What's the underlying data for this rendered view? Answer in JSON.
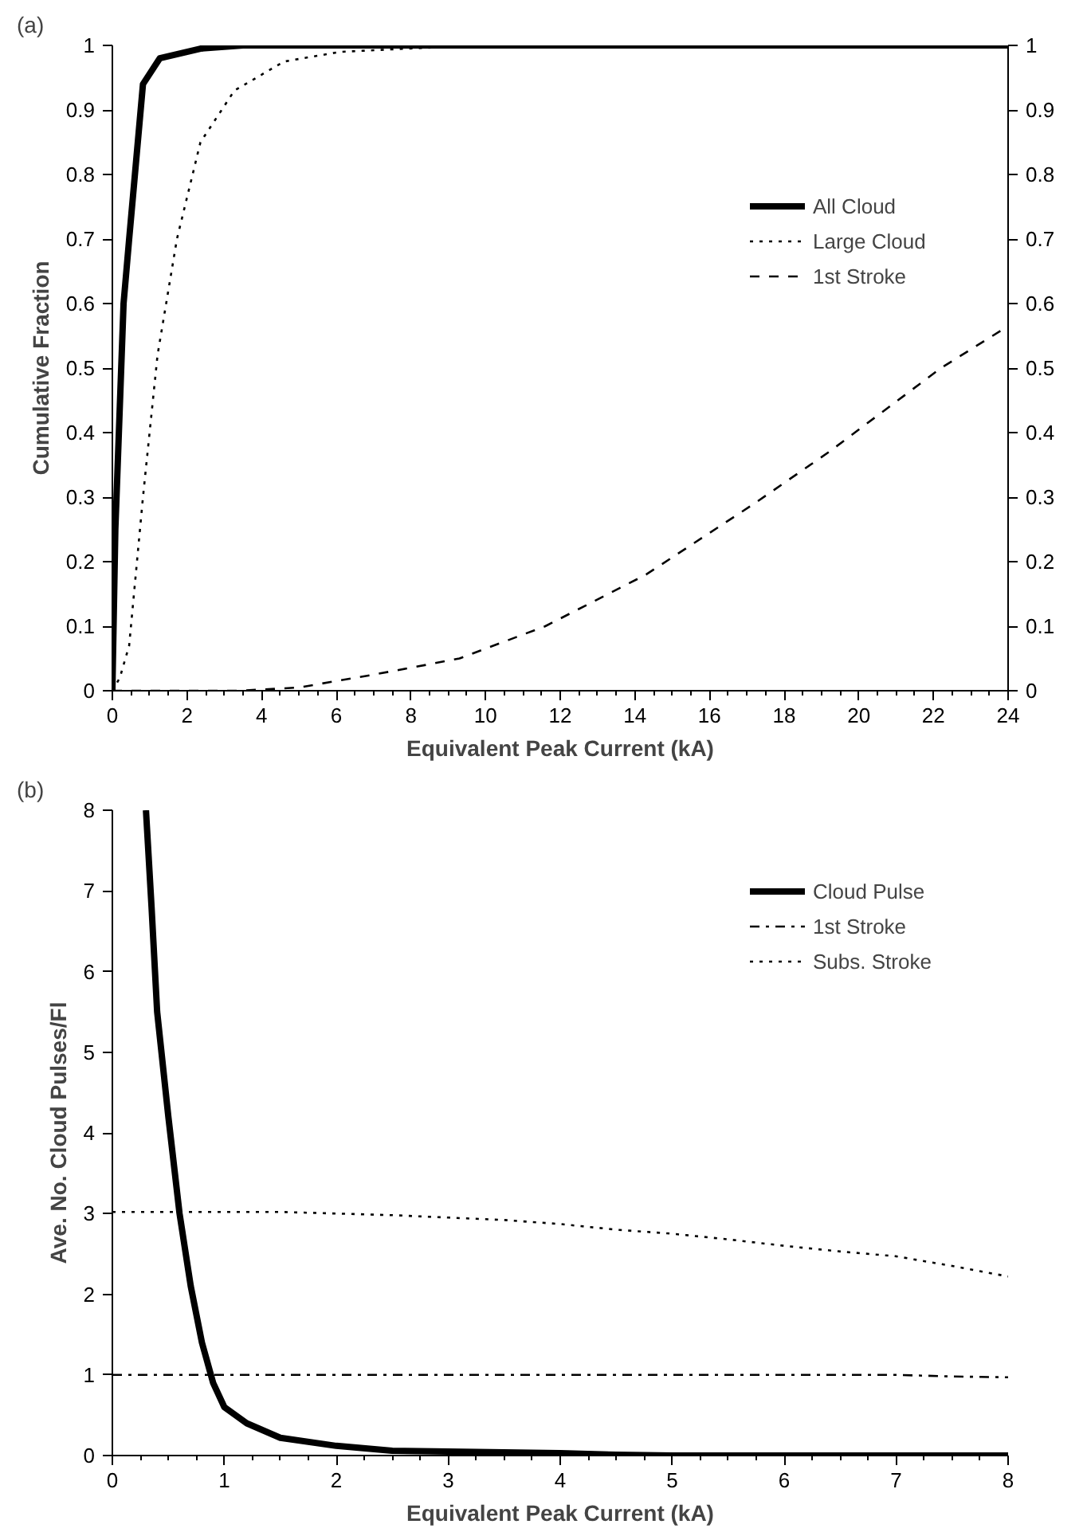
{
  "chart_data": [
    {
      "type": "line",
      "xlabel": "Equivalent Peak Current (kA)",
      "ylabel": "Cumulative Fraction",
      "annotations": [
        "(a)"
      ],
      "xlim": [
        0,
        24
      ],
      "xticks": [
        0,
        2,
        4,
        6,
        8,
        10,
        12,
        14,
        16,
        18,
        20,
        22,
        24
      ],
      "ylim": [
        0,
        1
      ],
      "yticks": [
        0,
        0.1,
        0.2,
        0.3,
        0.4,
        0.5,
        0.6,
        0.7,
        0.8,
        0.9,
        1
      ],
      "y2lim": [
        0,
        1
      ],
      "y2ticks": [
        0,
        0.1,
        0.2,
        0.3,
        0.4,
        0.5,
        0.6,
        0.7,
        0.8,
        0.9,
        1
      ],
      "grid": false,
      "legend": "right",
      "series": [
        {
          "name": "All Cloud",
          "color": "#000000",
          "line_style": "solid",
          "x": [
            0,
            0.08,
            0.3,
            0.45,
            0.82,
            1.27,
            2.36,
            3.5,
            24
          ],
          "values": [
            0,
            0.25,
            0.6,
            0.7,
            0.94,
            0.98,
            0.995,
            1,
            1
          ]
        },
        {
          "name": "Large Cloud",
          "color": "#000000",
          "line_style": "dotted",
          "x": [
            0,
            0.2,
            0.45,
            0.82,
            1.21,
            1.73,
            2.36,
            3.27,
            4.6,
            6.1,
            7.9,
            10,
            24
          ],
          "values": [
            0,
            0.02,
            0.07,
            0.3,
            0.52,
            0.7,
            0.85,
            0.93,
            0.975,
            0.99,
            0.995,
            1,
            1
          ]
        },
        {
          "name": "1st Stroke",
          "color": "#000000",
          "line_style": "dashed",
          "x": [
            0,
            3.4,
            5,
            6,
            7,
            8.4,
            9.3,
            11.6,
            14.3,
            17.2,
            19.2,
            22.2,
            24
          ],
          "values": [
            0,
            0,
            0.005,
            0.015,
            0.025,
            0.04,
            0.05,
            0.1,
            0.18,
            0.29,
            0.37,
            0.5,
            0.565
          ]
        }
      ]
    },
    {
      "type": "line",
      "xlabel": "Equivalent Peak Current (kA)",
      "ylabel": "Ave. No. Cloud Pulses/Fl",
      "annotations": [
        "(b)"
      ],
      "xlim": [
        0,
        8
      ],
      "xticks": [
        0,
        1,
        2,
        3,
        4,
        5,
        6,
        7,
        8
      ],
      "ylim": [
        0,
        8
      ],
      "yticks": [
        0,
        1,
        2,
        3,
        4,
        5,
        6,
        7,
        8
      ],
      "grid": false,
      "legend": "top right",
      "series": [
        {
          "name": "Cloud Pulse",
          "color": "#000000",
          "line_style": "solid",
          "x": [
            0.3,
            0.35,
            0.4,
            0.5,
            0.6,
            0.7,
            0.8,
            0.9,
            1.0,
            1.2,
            1.5,
            2,
            2.5,
            3,
            4,
            4.5,
            5,
            8
          ],
          "values": [
            8,
            6.8,
            5.5,
            4.2,
            3,
            2.1,
            1.4,
            0.9,
            0.6,
            0.4,
            0.22,
            0.12,
            0.06,
            0.05,
            0.03,
            0.01,
            0,
            0
          ]
        },
        {
          "name": "1st Stroke",
          "color": "#000000",
          "line_style": "dashdot",
          "x": [
            0,
            7,
            7.5,
            8
          ],
          "values": [
            1,
            1,
            0.98,
            0.97
          ]
        },
        {
          "name": "Subs. Stroke",
          "color": "#000000",
          "line_style": "dotted",
          "x": [
            0,
            1,
            1.5,
            2,
            2.5,
            3,
            3.5,
            4,
            4.5,
            5,
            5.5,
            6,
            6.5,
            7,
            7.5,
            8
          ],
          "values": [
            3.02,
            3.02,
            3.02,
            3.0,
            2.98,
            2.95,
            2.92,
            2.87,
            2.8,
            2.75,
            2.68,
            2.6,
            2.53,
            2.47,
            2.35,
            2.22
          ]
        }
      ]
    }
  ]
}
